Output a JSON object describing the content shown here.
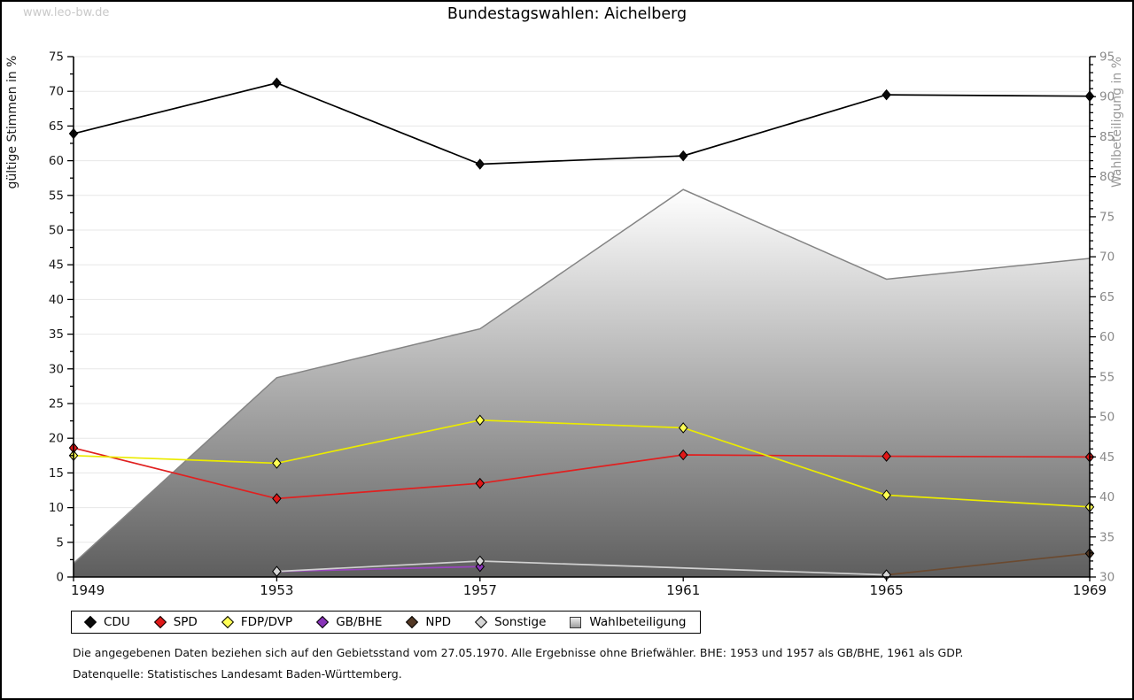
{
  "watermark": "www.leo-bw.de",
  "footnotes": [
    "Die angegebenen Daten beziehen sich auf den Gebietsstand vom 27.05.1970. Alle Ergebnisse ohne Briefwähler. BHE: 1953 und 1957 als GB/BHE, 1961 als GDP.",
    "Datenquelle: Statistisches Landesamt Baden-Württemberg."
  ],
  "chart_data": {
    "type": "line",
    "title": "Bundestagswahlen: Aichelberg",
    "x_years": [
      1949,
      1953,
      1957,
      1961,
      1965,
      1969
    ],
    "left_axis": {
      "label": "gültige Stimmen in %",
      "min": 0,
      "max": 75,
      "major_step": 5,
      "minor_step": 2.5,
      "label_color": "#1a1a1a",
      "tick_color": "#1a1a1a"
    },
    "right_axis": {
      "label": "Wahlbeteiligung in %",
      "min": 30,
      "max": 95,
      "major_step": 5,
      "minor_step": 1,
      "label_color": "#999999",
      "tick_color": "#8a8a8a"
    },
    "grid": true,
    "grid_color": "#e7e7e7",
    "legend_position": "bottom",
    "series": [
      {
        "name": "CDU",
        "axis": "left",
        "line_color": "#000000",
        "marker_color": "#0a0a0a",
        "x": [
          1949,
          1953,
          1957,
          1961,
          1965,
          1969
        ],
        "values": [
          63.9,
          71.2,
          59.5,
          60.7,
          69.5,
          69.3
        ]
      },
      {
        "name": "SPD",
        "axis": "left",
        "line_color": "#e02020",
        "marker_color": "#e01818",
        "x": [
          1949,
          1953,
          1957,
          1961,
          1965,
          1969
        ],
        "values": [
          18.6,
          11.3,
          13.5,
          17.6,
          17.4,
          17.3
        ]
      },
      {
        "name": "FDP/DVP",
        "axis": "left",
        "line_color": "#ebeb00",
        "marker_color": "#ffff55",
        "x": [
          1949,
          1953,
          1957,
          1961,
          1965,
          1969
        ],
        "values": [
          17.5,
          16.4,
          22.6,
          21.5,
          11.8,
          10.1
        ]
      },
      {
        "name": "GB/BHE",
        "axis": "left",
        "line_color": "#9944c0",
        "marker_color": "#8833b8",
        "x": [
          1953,
          1957
        ],
        "values": [
          0.8,
          1.5
        ]
      },
      {
        "name": "NPD",
        "axis": "left",
        "line_color": "#6b4a30",
        "marker_color": "#533824",
        "x": [
          1965,
          1969
        ],
        "values": [
          0.3,
          3.4
        ]
      },
      {
        "name": "Sonstige",
        "axis": "left",
        "line_color": "#d0d0d0",
        "marker_color": "#d6d6d6",
        "x": [
          1953,
          1957,
          1965
        ],
        "values": [
          0.8,
          2.3,
          0.3
        ]
      }
    ],
    "area_series": {
      "name": "Wahlbeteiligung",
      "axis": "right",
      "x": [
        1949,
        1953,
        1957,
        1961,
        1965,
        1969
      ],
      "values": [
        31.7,
        54.9,
        61.0,
        78.4,
        67.2,
        69.8
      ],
      "edge_color": "#848484",
      "gradient_top": "#ffffff",
      "gradient_bottom": "#5e5e5e"
    }
  }
}
